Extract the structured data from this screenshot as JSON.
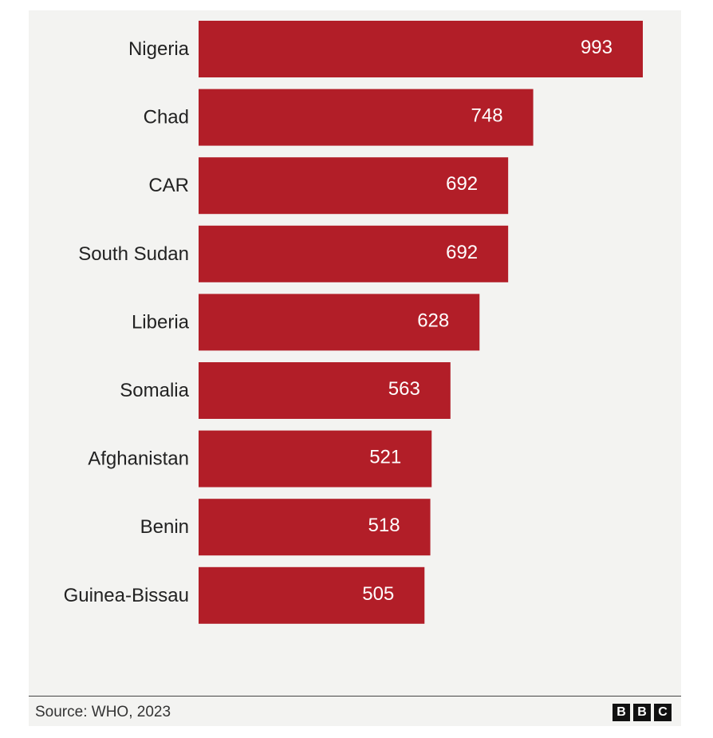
{
  "chart_data": {
    "type": "bar",
    "orientation": "horizontal",
    "categories": [
      "Nigeria",
      "Chad",
      "CAR",
      "South Sudan",
      "Liberia",
      "Somalia",
      "Afghanistan",
      "Benin",
      "Guinea-Bissau"
    ],
    "values": [
      993,
      748,
      692,
      692,
      628,
      563,
      521,
      518,
      505
    ],
    "title": "",
    "xlabel": "",
    "ylabel": "",
    "xlim": [
      0,
      1000
    ],
    "grid": false,
    "data_labels": true,
    "bar_color": "#b21e28"
  },
  "footer": {
    "source": "Source: WHO, 2023",
    "brand_letters": [
      "B",
      "B",
      "C"
    ]
  }
}
